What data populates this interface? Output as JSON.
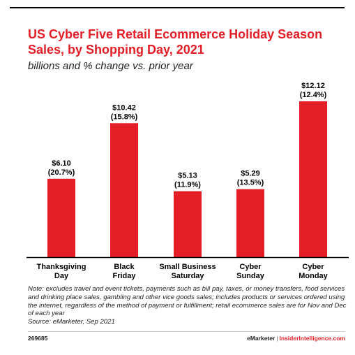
{
  "header": {
    "title": "US Cyber Five Retail Ecommerce Holiday Season Sales, by Shopping Day, 2021",
    "subtitle": "billions and % change vs. prior year"
  },
  "colors": {
    "bar": "#e41e26",
    "title": "#e41e26",
    "axis": "#000000"
  },
  "chart_data": {
    "type": "bar",
    "categories": [
      "Thanksgiving Day",
      "Black Friday",
      "Small Business Saturday",
      "Cyber Sunday",
      "Cyber Monday"
    ],
    "category_lines": [
      [
        "Thanksgiving",
        "Day"
      ],
      [
        "Black",
        "Friday"
      ],
      [
        "Small Business",
        "Saturday"
      ],
      [
        "Cyber",
        "Sunday"
      ],
      [
        "Cyber",
        "Monday"
      ]
    ],
    "values": [
      6.1,
      10.42,
      5.13,
      5.29,
      12.12
    ],
    "value_labels": [
      "$6.10",
      "$10.42",
      "$5.13",
      "$5.29",
      "$12.12"
    ],
    "change_labels": [
      "(20.7%)",
      "(15.8%)",
      "(11.9%)",
      "(13.5%)",
      "(12.4%)"
    ],
    "ylim": [
      0,
      12.12
    ],
    "grid": false
  },
  "note": {
    "text": "Note: excludes travel and event tickets, payments such as bill pay, taxes, or money transfers, food services and drinking place sales, gambling and other vice goods sales; includes products or services ordered using the internet, regardless of the method of payment or fulfillment; retail ecommerce sales are for Nov and Dec of each year",
    "source": "Source: eMarketer, Sep 2021"
  },
  "footer": {
    "id": "269685",
    "brand": "eMarketer",
    "separator": "|",
    "site": "InsiderIntelligence.com"
  }
}
